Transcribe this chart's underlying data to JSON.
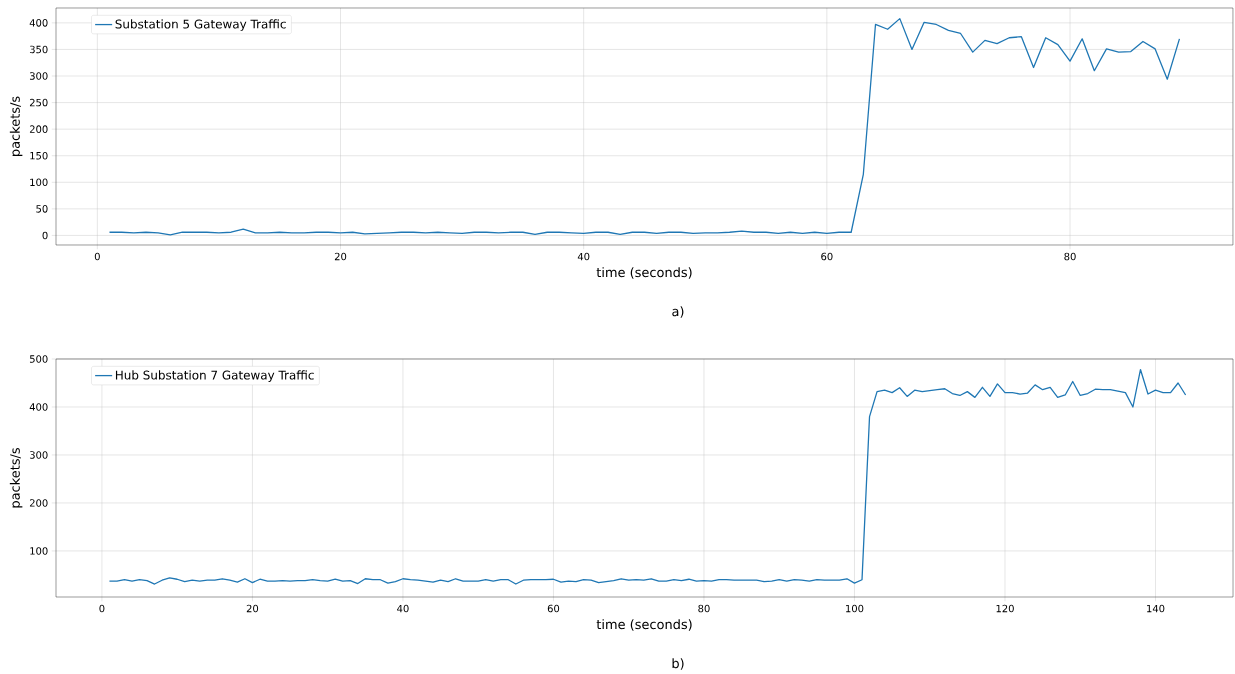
{
  "chart_data": [
    {
      "type": "line",
      "xlabel": "time (seconds)",
      "ylabel": "packets/s",
      "xlim": [
        -3.4,
        93.4
      ],
      "ylim": [
        -18,
        428
      ],
      "xticks": [
        0,
        20,
        40,
        60,
        80
      ],
      "yticks": [
        0,
        50,
        100,
        150,
        200,
        250,
        300,
        350,
        400
      ],
      "grid": true,
      "legend": "top left",
      "marker": "none",
      "line_style": "solid",
      "annotations": [
        "a)"
      ],
      "series": [
        {
          "name": "Substation 5 Gateway Traffic",
          "color": "#1f77b4",
          "x": [
            1,
            2,
            3,
            4,
            5,
            6,
            7,
            8,
            9,
            10,
            11,
            12,
            13,
            14,
            15,
            16,
            17,
            18,
            19,
            20,
            21,
            22,
            23,
            24,
            25,
            26,
            27,
            28,
            29,
            30,
            31,
            32,
            33,
            34,
            35,
            36,
            37,
            38,
            39,
            40,
            41,
            42,
            43,
            44,
            45,
            46,
            47,
            48,
            49,
            50,
            51,
            52,
            53,
            54,
            55,
            56,
            57,
            58,
            59,
            60,
            61,
            62,
            63,
            64,
            65,
            66,
            67,
            68,
            69,
            70,
            71,
            72,
            73,
            74,
            75,
            76,
            77,
            78,
            79,
            80,
            81,
            82,
            83,
            84,
            85,
            86,
            87,
            88,
            89
          ],
          "values": [
            6,
            6,
            5,
            6,
            5,
            1,
            6,
            6,
            6,
            5,
            6,
            12,
            5,
            5,
            6,
            5,
            5,
            6,
            6,
            5,
            6,
            3,
            4,
            5,
            6,
            6,
            5,
            6,
            5,
            4,
            6,
            6,
            5,
            6,
            6,
            2,
            6,
            6,
            5,
            4,
            6,
            6,
            2,
            6,
            6,
            4,
            6,
            6,
            4,
            5,
            5,
            6,
            8,
            6,
            6,
            4,
            6,
            4,
            6,
            4,
            6,
            6,
            115,
            397,
            388,
            408,
            350,
            401,
            397,
            386,
            380,
            345,
            367,
            361,
            372,
            374,
            316,
            372,
            359,
            328,
            370,
            310,
            351,
            345,
            346,
            365,
            351,
            294,
            370
          ]
        }
      ]
    },
    {
      "type": "line",
      "xlabel": "time (seconds)",
      "ylabel": "packets/s",
      "xlim": [
        -6.1,
        150.3
      ],
      "ylim": [
        4,
        500
      ],
      "xticks": [
        0,
        20,
        40,
        60,
        80,
        100,
        120,
        140
      ],
      "yticks": [
        100,
        200,
        300,
        400,
        500
      ],
      "grid": true,
      "legend": "top left",
      "marker": "none",
      "line_style": "solid",
      "annotations": [
        "b)"
      ],
      "series": [
        {
          "name": "Hub Substation 7 Gateway Traffic",
          "color": "#1f77b4",
          "x": [
            1,
            2,
            3,
            4,
            5,
            6,
            7,
            8,
            9,
            10,
            11,
            12,
            13,
            14,
            15,
            16,
            17,
            18,
            19,
            20,
            21,
            22,
            23,
            24,
            25,
            26,
            27,
            28,
            29,
            30,
            31,
            32,
            33,
            34,
            35,
            36,
            37,
            38,
            39,
            40,
            41,
            42,
            43,
            44,
            45,
            46,
            47,
            48,
            49,
            50,
            51,
            52,
            53,
            54,
            55,
            56,
            57,
            58,
            59,
            60,
            61,
            62,
            63,
            64,
            65,
            66,
            67,
            68,
            69,
            70,
            71,
            72,
            73,
            74,
            75,
            76,
            77,
            78,
            79,
            80,
            81,
            82,
            83,
            84,
            85,
            86,
            87,
            88,
            89,
            90,
            91,
            92,
            93,
            94,
            95,
            96,
            97,
            98,
            99,
            100,
            101,
            102,
            103,
            104,
            105,
            106,
            107,
            108,
            109,
            110,
            111,
            112,
            113,
            114,
            115,
            116,
            117,
            118,
            119,
            120,
            121,
            122,
            123,
            124,
            125,
            126,
            127,
            128,
            129,
            130,
            131,
            132,
            133,
            134,
            135,
            136,
            137,
            138,
            139,
            140,
            141,
            142,
            143,
            144
          ],
          "values": [
            37,
            37,
            40,
            37,
            40,
            38,
            31,
            39,
            44,
            41,
            36,
            39,
            37,
            39,
            39,
            42,
            39,
            35,
            42,
            34,
            41,
            37,
            37,
            38,
            37,
            38,
            38,
            40,
            38,
            37,
            41,
            37,
            38,
            32,
            42,
            40,
            40,
            33,
            36,
            42,
            40,
            39,
            37,
            35,
            39,
            36,
            42,
            37,
            37,
            37,
            40,
            37,
            40,
            40,
            31,
            39,
            40,
            40,
            40,
            41,
            35,
            37,
            36,
            40,
            39,
            34,
            36,
            38,
            42,
            39,
            40,
            39,
            42,
            37,
            37,
            40,
            38,
            41,
            37,
            38,
            37,
            40,
            40,
            39,
            39,
            39,
            39,
            36,
            37,
            40,
            37,
            40,
            39,
            37,
            40,
            39,
            39,
            39,
            42,
            33,
            40,
            380,
            432,
            435,
            430,
            440,
            422,
            435,
            432,
            434,
            436,
            438,
            428,
            424,
            432,
            420,
            441,
            422,
            448,
            430,
            430,
            427,
            429,
            446,
            436,
            441,
            420,
            425,
            453,
            424,
            428,
            437,
            436,
            436,
            433,
            430,
            400,
            478,
            427,
            435,
            430,
            430,
            450,
            425
          ]
        }
      ]
    }
  ]
}
